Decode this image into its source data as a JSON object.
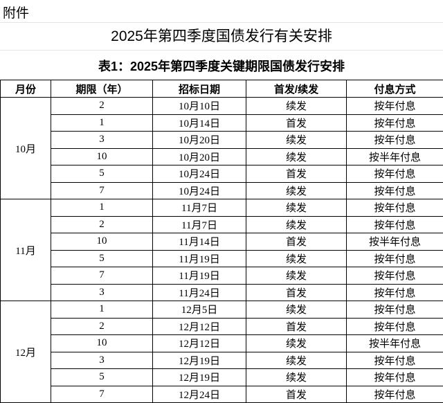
{
  "header": {
    "attachment": "附件",
    "title": "2025年第四季度国债发行有关安排"
  },
  "table": {
    "caption": "表1：2025年第四季度关键期限国债发行安排",
    "columns": [
      "月份",
      "期限（年）",
      "招标日期",
      "首发/续发",
      "付息方式"
    ],
    "groups": [
      {
        "month": "10月",
        "rows": [
          [
            2,
            "10月10日",
            "续发",
            "按年付息"
          ],
          [
            1,
            "10月14日",
            "首发",
            "按年付息"
          ],
          [
            3,
            "10月20日",
            "续发",
            "按年付息"
          ],
          [
            10,
            "10月20日",
            "续发",
            "按半年付息"
          ],
          [
            5,
            "10月24日",
            "首发",
            "按年付息"
          ],
          [
            7,
            "10月24日",
            "续发",
            "按年付息"
          ]
        ]
      },
      {
        "month": "11月",
        "rows": [
          [
            1,
            "11月7日",
            "续发",
            "按年付息"
          ],
          [
            2,
            "11月7日",
            "续发",
            "按年付息"
          ],
          [
            10,
            "11月14日",
            "首发",
            "按半年付息"
          ],
          [
            5,
            "11月19日",
            "续发",
            "按年付息"
          ],
          [
            7,
            "11月19日",
            "续发",
            "按年付息"
          ],
          [
            3,
            "11月24日",
            "首发",
            "按年付息"
          ]
        ]
      },
      {
        "month": "12月",
        "rows": [
          [
            1,
            "12月5日",
            "续发",
            "按年付息"
          ],
          [
            2,
            "12月12日",
            "首发",
            "按年付息"
          ],
          [
            10,
            "12月12日",
            "续发",
            "按半年付息"
          ],
          [
            3,
            "12月19日",
            "续发",
            "按年付息"
          ],
          [
            5,
            "12月19日",
            "续发",
            "按年付息"
          ],
          [
            7,
            "12月24日",
            "首发",
            "按年付息"
          ]
        ]
      }
    ]
  }
}
